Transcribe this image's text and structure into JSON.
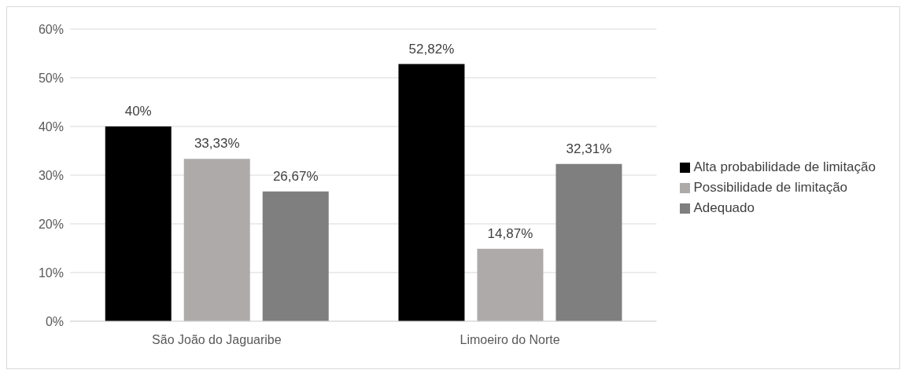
{
  "chart_data": {
    "type": "bar",
    "categories": [
      "São João do Jaguaribe",
      "Limoeiro do Norte"
    ],
    "series": [
      {
        "name": "Alta probabilidade de limitação",
        "color": "#000000",
        "values": [
          40,
          52.82
        ],
        "value_labels": [
          "40%",
          "52,82%"
        ]
      },
      {
        "name": "Possibilidade de limitação",
        "color": "#aeaaaa",
        "values": [
          33.33,
          14.87
        ],
        "value_labels": [
          "33,33%",
          "14,87%"
        ]
      },
      {
        "name": "Adequado",
        "color": "#7f7f7f",
        "values": [
          26.67,
          32.31
        ],
        "value_labels": [
          "26,67%",
          "32,31%"
        ]
      }
    ],
    "ylim": [
      0,
      60
    ],
    "yticks": [
      {
        "value": 0,
        "label": "0%"
      },
      {
        "value": 10,
        "label": "10%"
      },
      {
        "value": 20,
        "label": "20%"
      },
      {
        "value": 30,
        "label": "30%"
      },
      {
        "value": 40,
        "label": "40%"
      },
      {
        "value": 50,
        "label": "50%"
      },
      {
        "value": 60,
        "label": "60%"
      }
    ],
    "grid": "y",
    "legend": "right"
  }
}
